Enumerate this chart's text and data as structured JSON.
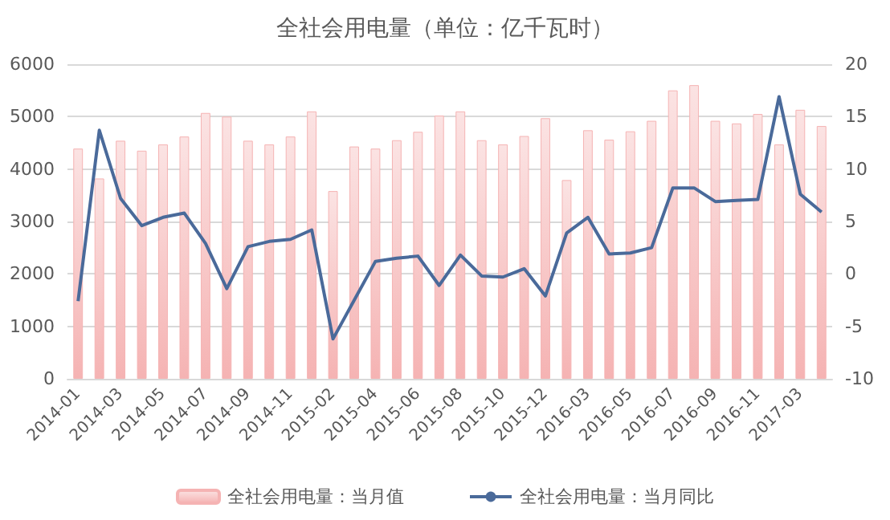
{
  "chart_data": {
    "type": "bar",
    "title": "全社会用电量（单位：亿千瓦时）",
    "categories": [
      "2014-01",
      null,
      "2014-03",
      null,
      "2014-05",
      null,
      "2014-07",
      null,
      "2014-09",
      null,
      "2014-11",
      null,
      "2015-02",
      null,
      "2015-04",
      null,
      "2015-06",
      null,
      "2015-08",
      null,
      "2015-10",
      null,
      "2015-12",
      null,
      "2016-03",
      null,
      "2016-05",
      null,
      "2016-07",
      null,
      "2016-09",
      null,
      "2016-11",
      null,
      "2017-03",
      null
    ],
    "series": [
      {
        "name": "全社会用电量：当月值",
        "color": "#f5b3b3",
        "values": [
          4390,
          3820,
          4540,
          4350,
          4470,
          4620,
          5070,
          5000,
          4540,
          4470,
          4620,
          5100,
          3580,
          4430,
          4390,
          4550,
          4710,
          5020,
          5100,
          4550,
          4470,
          4630,
          4970,
          3790,
          4740,
          4560,
          4720,
          4920,
          5500,
          5600,
          4920,
          4870,
          5050,
          4470,
          5130,
          4820
        ]
      },
      {
        "name": "全社会用电量：当月同比",
        "type": "line",
        "axis": "y2",
        "color": "#4a6a9a",
        "values": [
          -2.6,
          13.7,
          7.2,
          4.6,
          5.4,
          5.8,
          2.9,
          -1.4,
          2.6,
          3.1,
          3.3,
          4.2,
          -6.2,
          -2.5,
          1.2,
          1.5,
          1.7,
          -1.1,
          1.8,
          -0.2,
          -0.3,
          0.5,
          -2.1,
          3.9,
          5.4,
          1.9,
          2.0,
          2.5,
          8.2,
          8.2,
          6.9,
          7.0,
          7.1,
          16.9,
          7.6,
          5.9
        ]
      }
    ],
    "ylim": [
      0,
      6000
    ],
    "yticks": [
      0,
      1000,
      2000,
      3000,
      4000,
      5000,
      6000
    ],
    "y2lim": [
      -10,
      20
    ],
    "y2ticks": [
      -10,
      -5,
      0,
      5,
      10,
      15,
      20
    ],
    "grid": "y",
    "legend": "bottom",
    "marker": "none"
  }
}
